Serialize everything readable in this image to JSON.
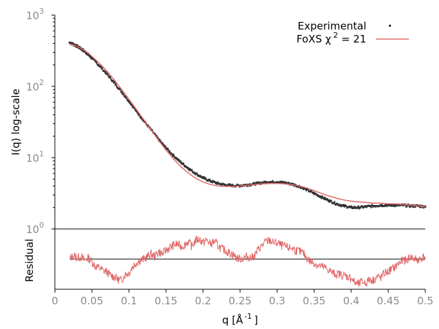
{
  "chart_data": {
    "type": "line",
    "title": "",
    "legend_position": "top-right",
    "colors": {
      "experimental": "#333333",
      "fit": "#e06666",
      "axis": "#000000",
      "tick_text": "#8a8a8a",
      "zero_line": "#000000"
    },
    "top_panel": {
      "ylabel": "I(q) log-scale",
      "yscale": "log",
      "ylim": [
        1,
        1000
      ],
      "yticks": [
        {
          "value": 1,
          "base": "10",
          "exp": "0"
        },
        {
          "value": 10,
          "base": "10",
          "exp": "1"
        },
        {
          "value": 100,
          "base": "10",
          "exp": "2"
        },
        {
          "value": 1000,
          "base": "10",
          "exp": "3"
        }
      ],
      "series": [
        {
          "name": "Experimental",
          "style": "points",
          "x": [
            0.02,
            0.025,
            0.03,
            0.035,
            0.04,
            0.045,
            0.05,
            0.06,
            0.07,
            0.08,
            0.09,
            0.1,
            0.11,
            0.12,
            0.13,
            0.14,
            0.15,
            0.16,
            0.17,
            0.18,
            0.19,
            0.2,
            0.21,
            0.22,
            0.23,
            0.24,
            0.25,
            0.26,
            0.27,
            0.28,
            0.29,
            0.3,
            0.31,
            0.32,
            0.33,
            0.34,
            0.35,
            0.36,
            0.37,
            0.38,
            0.39,
            0.4,
            0.41,
            0.42,
            0.43,
            0.44,
            0.45,
            0.46,
            0.47,
            0.48,
            0.49,
            0.5
          ],
          "y": [
            410,
            390,
            365,
            340,
            310,
            280,
            248,
            195,
            150,
            113,
            84,
            62,
            45,
            33,
            24.5,
            18.0,
            13.7,
            10.7,
            8.6,
            7.1,
            6.0,
            5.2,
            4.7,
            4.35,
            4.15,
            4.05,
            4.05,
            4.15,
            4.3,
            4.45,
            4.55,
            4.55,
            4.45,
            4.25,
            3.95,
            3.55,
            3.15,
            2.8,
            2.5,
            2.25,
            2.1,
            2.0,
            2.0,
            2.05,
            2.1,
            2.15,
            2.15,
            2.15,
            2.15,
            2.1,
            2.1,
            2.05
          ]
        },
        {
          "name": "FoXS χ 2 = 21",
          "style": "line",
          "x": [
            0.02,
            0.025,
            0.03,
            0.035,
            0.04,
            0.045,
            0.05,
            0.06,
            0.07,
            0.08,
            0.09,
            0.1,
            0.11,
            0.12,
            0.13,
            0.14,
            0.15,
            0.16,
            0.17,
            0.18,
            0.19,
            0.2,
            0.21,
            0.22,
            0.23,
            0.24,
            0.25,
            0.26,
            0.27,
            0.28,
            0.29,
            0.3,
            0.31,
            0.32,
            0.33,
            0.34,
            0.35,
            0.36,
            0.37,
            0.38,
            0.39,
            0.4,
            0.41,
            0.42,
            0.43,
            0.44,
            0.45,
            0.46,
            0.47,
            0.48,
            0.49,
            0.5
          ],
          "y": [
            395,
            382,
            363,
            342,
            318,
            292,
            264,
            212,
            165,
            124,
            91,
            66,
            47.5,
            34,
            24.5,
            17.5,
            12.8,
            9.6,
            7.5,
            6.1,
            5.15,
            4.55,
            4.2,
            4.0,
            3.95,
            3.95,
            4.0,
            4.1,
            4.2,
            4.3,
            4.35,
            4.35,
            4.3,
            4.2,
            4.0,
            3.75,
            3.45,
            3.15,
            2.9,
            2.7,
            2.55,
            2.45,
            2.4,
            2.35,
            2.3,
            2.3,
            2.25,
            2.25,
            2.2,
            2.15,
            2.1,
            2.05
          ]
        }
      ]
    },
    "bottom_panel": {
      "ylabel": "Residual",
      "ylim": [
        -1.2,
        1.2
      ],
      "series": [
        {
          "name": "Residual",
          "style": "line",
          "x": [
            0.02,
            0.025,
            0.03,
            0.035,
            0.04,
            0.045,
            0.05,
            0.055,
            0.06,
            0.065,
            0.07,
            0.075,
            0.08,
            0.085,
            0.09,
            0.095,
            0.1,
            0.105,
            0.11,
            0.115,
            0.12,
            0.125,
            0.13,
            0.135,
            0.14,
            0.145,
            0.15,
            0.155,
            0.16,
            0.165,
            0.17,
            0.175,
            0.18,
            0.185,
            0.19,
            0.195,
            0.2,
            0.205,
            0.21,
            0.215,
            0.22,
            0.225,
            0.23,
            0.235,
            0.24,
            0.245,
            0.25,
            0.255,
            0.26,
            0.265,
            0.27,
            0.275,
            0.28,
            0.285,
            0.29,
            0.295,
            0.3,
            0.305,
            0.31,
            0.315,
            0.32,
            0.325,
            0.33,
            0.335,
            0.34,
            0.345,
            0.35,
            0.355,
            0.36,
            0.365,
            0.37,
            0.375,
            0.38,
            0.385,
            0.39,
            0.395,
            0.4,
            0.405,
            0.41,
            0.415,
            0.42,
            0.425,
            0.43,
            0.435,
            0.44,
            0.445,
            0.45,
            0.455,
            0.46,
            0.465,
            0.47,
            0.475,
            0.48,
            0.485,
            0.49,
            0.495,
            0.5
          ],
          "y": [
            0.0,
            0.15,
            0.05,
            0.1,
            -0.05,
            0.05,
            -0.1,
            -0.3,
            -0.35,
            -0.45,
            -0.5,
            -0.65,
            -0.7,
            -0.8,
            -0.85,
            -0.6,
            -0.55,
            -0.3,
            -0.15,
            -0.05,
            0.0,
            0.1,
            0.2,
            0.1,
            0.3,
            0.2,
            0.35,
            0.45,
            0.55,
            0.6,
            0.5,
            0.55,
            0.7,
            0.5,
            0.75,
            0.8,
            0.65,
            0.75,
            0.6,
            0.7,
            0.55,
            0.4,
            0.35,
            0.25,
            0.2,
            0.05,
            0.0,
            0.05,
            0.1,
            0.05,
            0.15,
            0.4,
            0.55,
            0.7,
            0.75,
            0.65,
            0.65,
            0.55,
            0.5,
            0.45,
            0.45,
            0.35,
            0.3,
            0.25,
            0.05,
            -0.1,
            -0.15,
            -0.25,
            -0.3,
            -0.35,
            -0.45,
            -0.55,
            -0.6,
            -0.6,
            -0.65,
            -0.7,
            -0.75,
            -0.95,
            -1.0,
            -0.9,
            -0.95,
            -0.8,
            -0.85,
            -0.7,
            -0.75,
            -0.55,
            -0.5,
            -0.4,
            -0.3,
            -0.15,
            -0.05,
            -0.05,
            0.1,
            0.0,
            -0.05,
            0.05,
            0.1
          ]
        }
      ]
    },
    "x_axis": {
      "xlabel": "q [Å -1 ]",
      "xlabel_parts": [
        "q [Å",
        "-1",
        "]"
      ],
      "xlim": [
        0,
        0.5
      ],
      "xticks": [
        {
          "value": 0,
          "label": "0"
        },
        {
          "value": 0.05,
          "label": "0.05"
        },
        {
          "value": 0.1,
          "label": "0.1"
        },
        {
          "value": 0.15,
          "label": "0.15"
        },
        {
          "value": 0.2,
          "label": "0.2"
        },
        {
          "value": 0.25,
          "label": "0.25"
        },
        {
          "value": 0.3,
          "label": "0.3"
        },
        {
          "value": 0.35,
          "label": "0.35"
        },
        {
          "value": 0.4,
          "label": "0.4"
        },
        {
          "value": 0.45,
          "label": "0.45"
        },
        {
          "value": 0.5,
          "label": "0.5"
        }
      ]
    },
    "legend": [
      {
        "label": "Experimental",
        "marker": "point"
      },
      {
        "label": "FoXS χ",
        "sup": "2",
        "suffix": " = 21",
        "marker": "line"
      }
    ]
  }
}
